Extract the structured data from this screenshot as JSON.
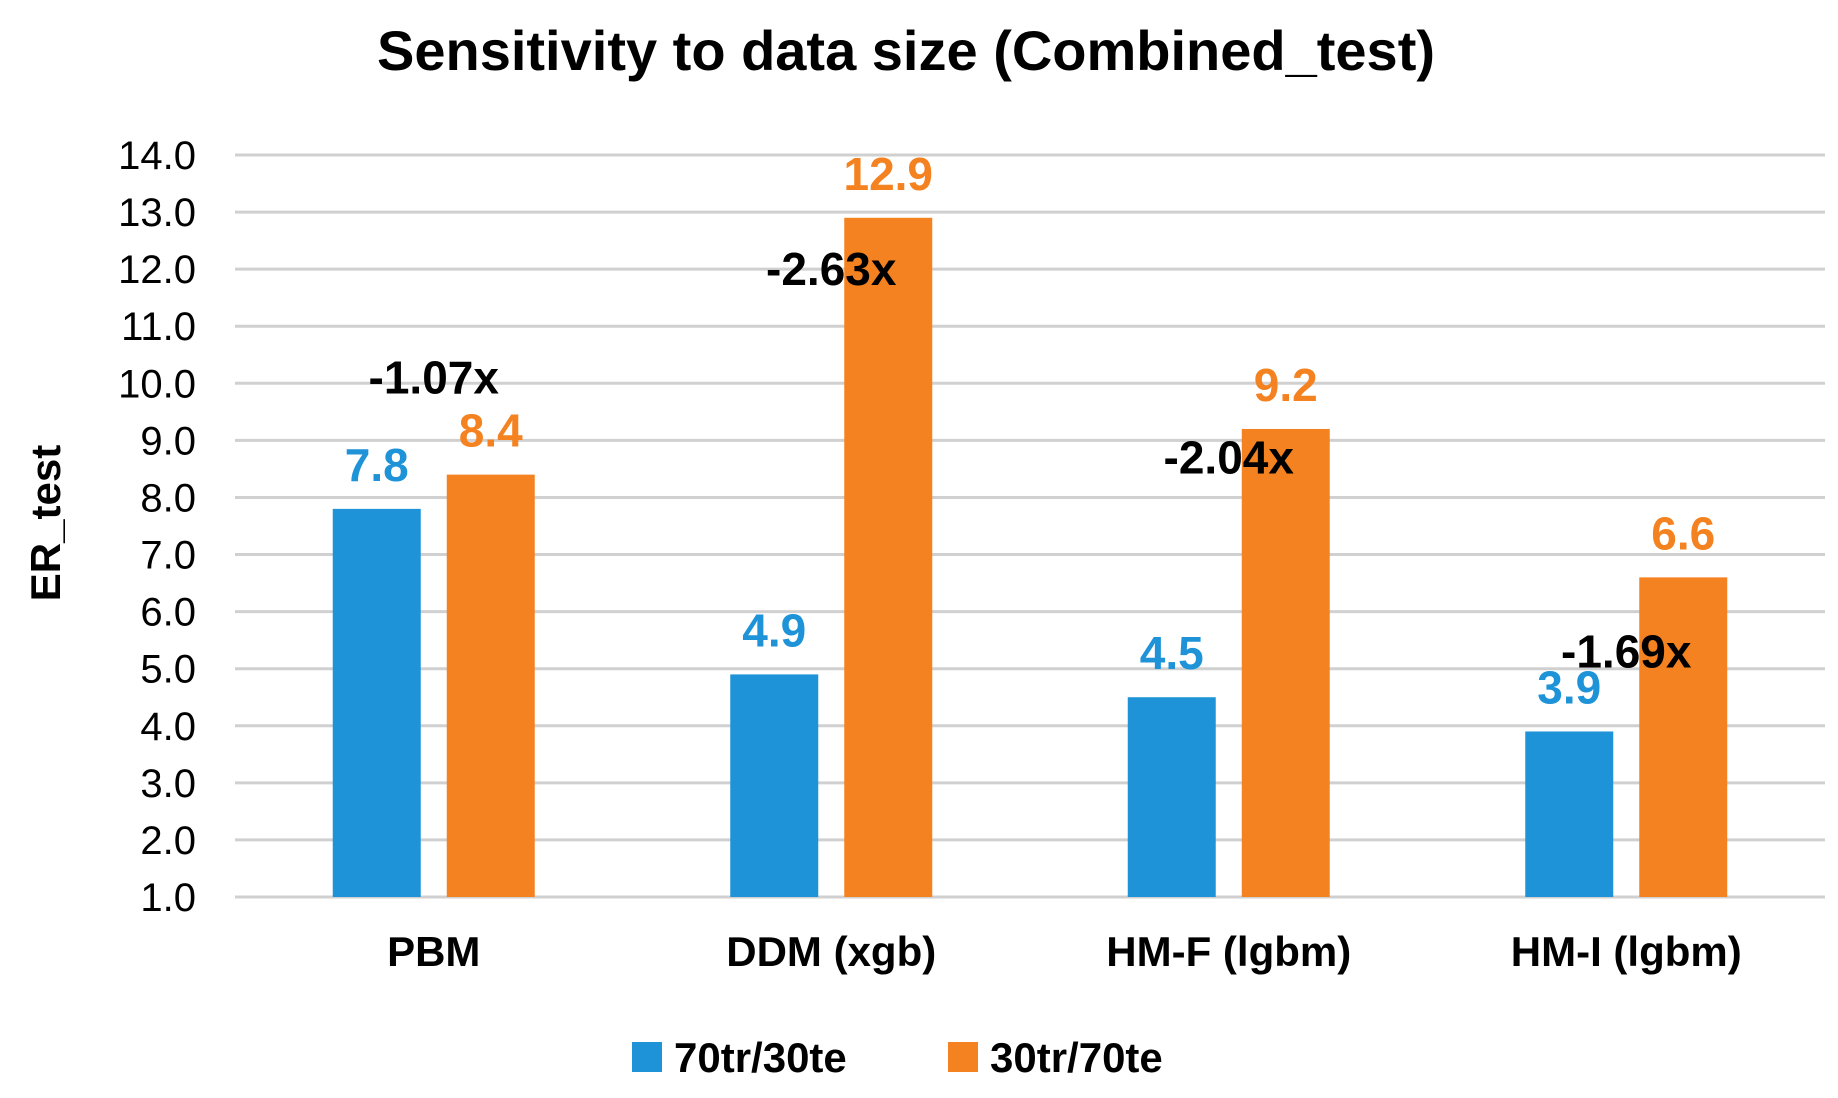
{
  "chart_data": {
    "type": "bar",
    "title": "Sensitivity to data size (Combined_test)",
    "xlabel": "",
    "ylabel": "ER_test",
    "ylim": [
      1.0,
      14.0
    ],
    "yticks": [
      "1.0",
      "2.0",
      "3.0",
      "4.0",
      "5.0",
      "6.0",
      "7.0",
      "8.0",
      "9.0",
      "10.0",
      "11.0",
      "12.0",
      "13.0",
      "14.0"
    ],
    "grid": true,
    "legend_position": "bottom",
    "categories": [
      "PBM",
      "DDM (xgb)",
      "HM-F (lgbm)",
      "HM-I (lgbm)"
    ],
    "series": [
      {
        "name": "70tr/30te",
        "color": "#1f93d8",
        "values": [
          7.8,
          4.9,
          4.5,
          3.9
        ],
        "labels": [
          "7.8",
          "4.9",
          "4.5",
          "3.9"
        ]
      },
      {
        "name": "30tr/70te",
        "color": "#f58220",
        "values": [
          8.4,
          12.9,
          9.2,
          6.6
        ],
        "labels": [
          "8.4",
          "12.9",
          "9.2",
          "6.6"
        ]
      }
    ],
    "annotations": [
      "-1.07x",
      "-2.63x",
      "-2.04x",
      "-1.69x"
    ],
    "annotation_values": [
      10.1,
      12.0,
      8.7,
      5.3
    ]
  }
}
